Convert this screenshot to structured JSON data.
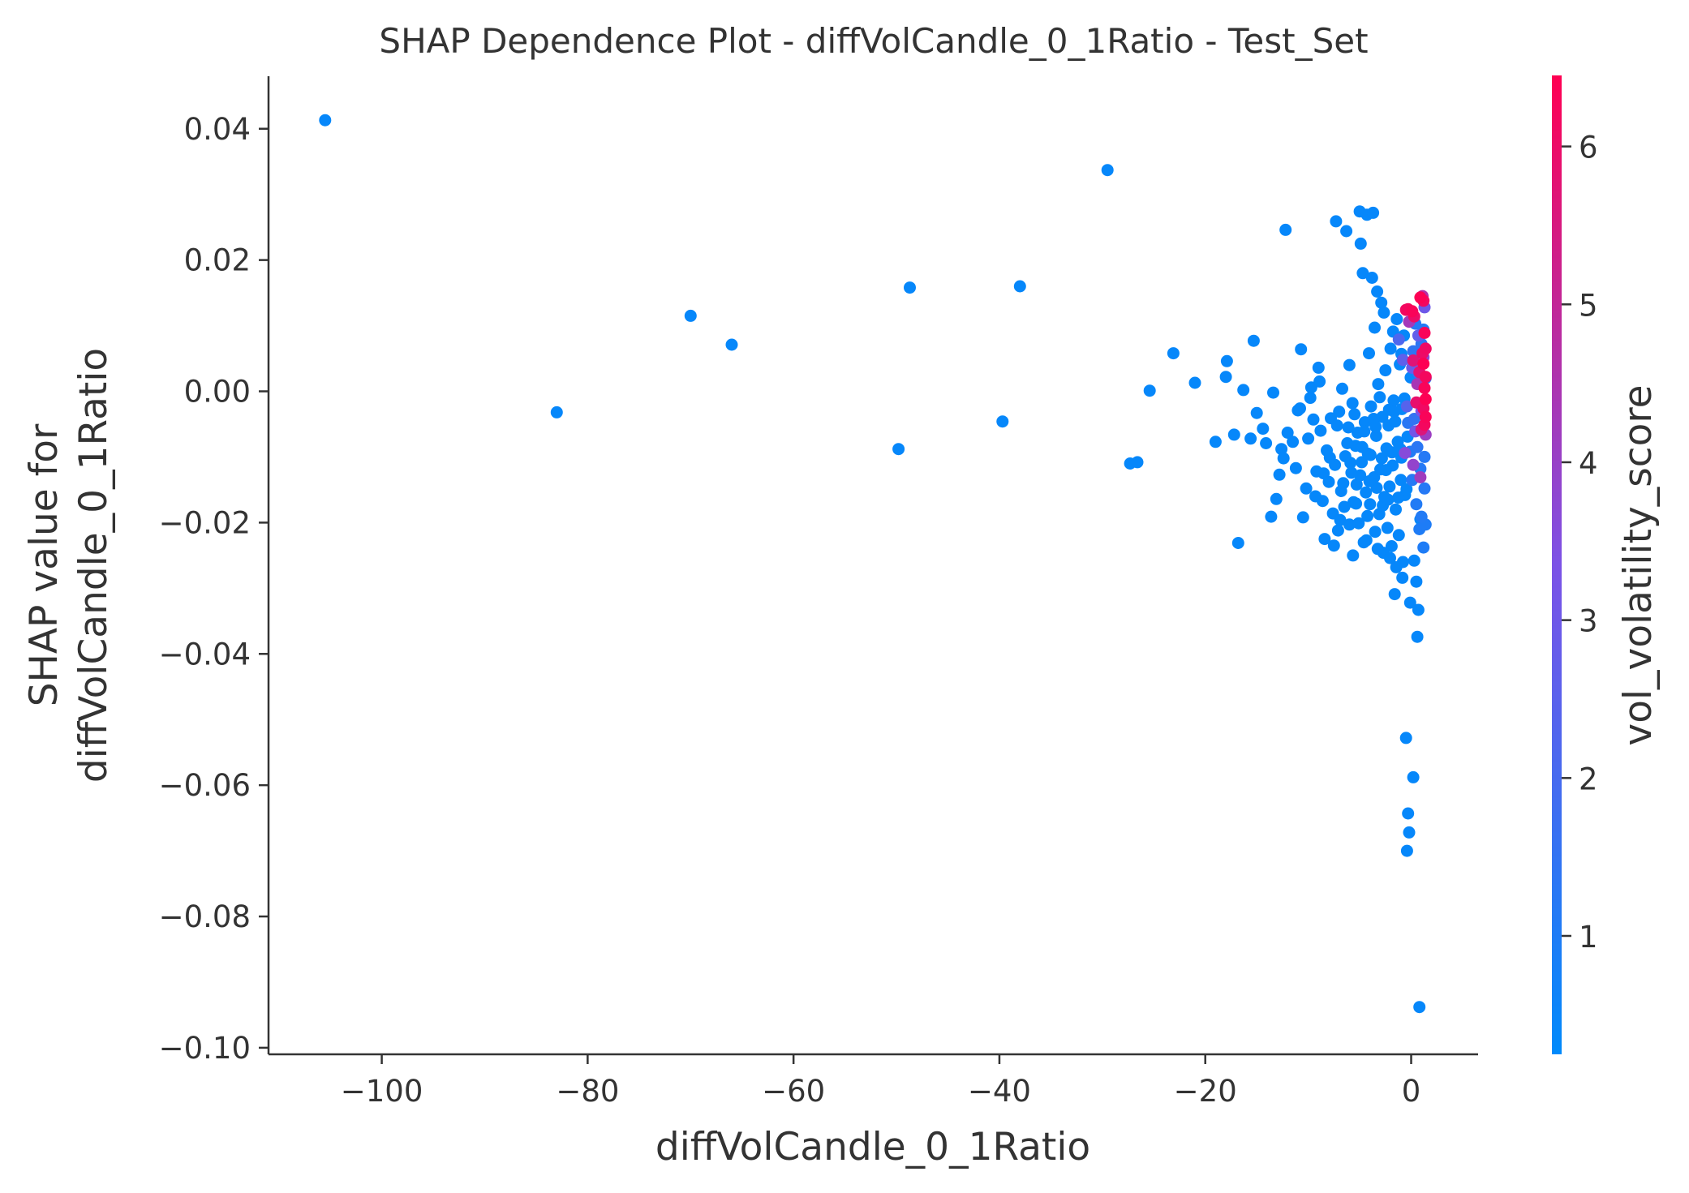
{
  "chart_data": {
    "type": "scatter",
    "title": "SHAP Dependence Plot - diffVolCandle_0_1Ratio - Test_Set",
    "xlabel": "diffVolCandle_0_1Ratio",
    "ylabel_lines": [
      "SHAP value for",
      "diffVolCandle_0_1Ratio"
    ],
    "colorbar_label": "vol_volatility_score",
    "xlim": [
      -111,
      6.5
    ],
    "ylim": [
      -0.101,
      0.048
    ],
    "x_ticks": [
      -100,
      -80,
      -60,
      -40,
      -20,
      0
    ],
    "x_tick_labels": [
      "−100",
      "−80",
      "−60",
      "−40",
      "−20",
      "0"
    ],
    "y_ticks": [
      0.04,
      0.02,
      0.0,
      -0.02,
      -0.04,
      -0.06,
      -0.08,
      -0.1
    ],
    "y_tick_labels": [
      "0.04",
      "0.02",
      "0.00",
      "−0.02",
      "−0.04",
      "−0.06",
      "−0.08",
      "−0.10"
    ],
    "colorbar_range": [
      0.25,
      6.45
    ],
    "colorbar_ticks": [
      1,
      2,
      3,
      4,
      5,
      6
    ],
    "colorbar_tick_labels": [
      "1",
      "2",
      "3",
      "4",
      "5",
      "6"
    ],
    "colors": {
      "low": "#008afb",
      "mid": "#7c52e6",
      "high": "#ff0052",
      "axis": "#333333"
    },
    "grid": false,
    "points": [
      [
        -105.5,
        0.0413,
        0.4
      ],
      [
        -29.5,
        0.0337,
        0.4
      ],
      [
        -83,
        -0.0032,
        0.4
      ],
      [
        -70,
        0.0115,
        0.4
      ],
      [
        -66,
        0.0071,
        0.4
      ],
      [
        -48.7,
        0.0158,
        0.4
      ],
      [
        -38,
        0.016,
        0.4
      ],
      [
        -49.8,
        -0.0088,
        0.4
      ],
      [
        -39.7,
        -0.0046,
        0.4
      ],
      [
        -27.3,
        -0.011,
        0.4
      ],
      [
        -26.6,
        -0.0108,
        0.4
      ],
      [
        -25.4,
        0.0001,
        0.4
      ],
      [
        -23.1,
        0.0058,
        0.4
      ],
      [
        -21,
        0.0013,
        0.4
      ],
      [
        -19,
        -0.0077,
        0.4
      ],
      [
        -17.9,
        0.0046,
        0.4
      ],
      [
        -18,
        0.0022,
        0.4
      ],
      [
        -17.2,
        -0.0066,
        0.4
      ],
      [
        -16.8,
        -0.0231,
        0.4
      ],
      [
        -16.3,
        0.0002,
        0.4
      ],
      [
        -15.6,
        -0.0072,
        0.4
      ],
      [
        -15.3,
        0.0077,
        0.4
      ],
      [
        -15,
        -0.0033,
        0.4
      ],
      [
        -14.4,
        -0.0057,
        0.4
      ],
      [
        -14.1,
        -0.0079,
        0.4
      ],
      [
        -13.6,
        -0.0191,
        0.4
      ],
      [
        -13.4,
        -0.0002,
        0.4
      ],
      [
        -13.1,
        -0.0164,
        0.4
      ],
      [
        -12.8,
        -0.0127,
        0.4
      ],
      [
        -12.6,
        -0.0088,
        0.4
      ],
      [
        -12.4,
        -0.0102,
        0.4
      ],
      [
        -12.2,
        0.0246,
        0.4
      ],
      [
        -11.5,
        -0.0077,
        0.4
      ],
      [
        -11,
        -0.0029,
        0.4
      ],
      [
        -10.7,
        0.0064,
        0.4
      ],
      [
        -10.5,
        -0.0192,
        0.4
      ],
      [
        -10.2,
        -0.0148,
        0.4
      ],
      [
        -10,
        -0.0072,
        0.4
      ],
      [
        -9.8,
        -0.001,
        0.4
      ],
      [
        -9.5,
        -0.0043,
        0.4
      ],
      [
        -9.2,
        -0.0122,
        0.4
      ],
      [
        -9,
        0.0036,
        0.4
      ],
      [
        -8.8,
        -0.006,
        0.4
      ],
      [
        -8.6,
        -0.0167,
        0.4
      ],
      [
        -8.4,
        -0.0225,
        0.4
      ],
      [
        -8.2,
        -0.009,
        0.4
      ],
      [
        -8,
        -0.0138,
        0.4
      ],
      [
        -7.8,
        -0.0041,
        0.4
      ],
      [
        -7.6,
        -0.0186,
        0.4
      ],
      [
        -7.4,
        -0.0112,
        0.4
      ],
      [
        -7.3,
        0.0259,
        0.4
      ],
      [
        -7.1,
        -0.0212,
        0.4
      ],
      [
        -7,
        -0.0031,
        0.4
      ],
      [
        -6.8,
        -0.0152,
        0.4
      ],
      [
        -6.7,
        0.0004,
        0.4
      ],
      [
        -6.5,
        -0.0176,
        0.4
      ],
      [
        -6.4,
        -0.0099,
        0.4
      ],
      [
        -6.3,
        0.0244,
        0.4
      ],
      [
        -6.1,
        -0.0055,
        0.4
      ],
      [
        -6,
        -0.0203,
        0.4
      ],
      [
        -5.8,
        -0.0124,
        0.4
      ],
      [
        -5.7,
        -0.0018,
        0.4
      ],
      [
        -5.6,
        -0.0169,
        0.4
      ],
      [
        -5.4,
        -0.0083,
        0.4
      ],
      [
        -5.3,
        -0.0142,
        0.4
      ],
      [
        -5.2,
        -0.0063,
        0.4
      ],
      [
        -5.1,
        -0.0201,
        0.4
      ],
      [
        -5,
        0.0274,
        0.4
      ],
      [
        -4.9,
        0.0225,
        0.4
      ],
      [
        -4.8,
        -0.0108,
        0.4
      ],
      [
        -4.7,
        0.018,
        0.4
      ],
      [
        -4.6,
        -0.023,
        0.4
      ],
      [
        -4.5,
        -0.0047,
        0.4
      ],
      [
        -4.4,
        -0.0154,
        0.4
      ],
      [
        -4.3,
        0.0269,
        0.4
      ],
      [
        -4.2,
        -0.0095,
        0.4
      ],
      [
        -4.1,
        0.0058,
        0.4
      ],
      [
        -4,
        -0.0172,
        0.4
      ],
      [
        -3.9,
        -0.0023,
        0.4
      ],
      [
        -3.8,
        0.0173,
        0.4
      ],
      [
        -3.7,
        0.0272,
        0.4
      ],
      [
        -3.6,
        -0.0131,
        0.4
      ],
      [
        -3.5,
        -0.0214,
        0.4
      ],
      [
        -3.4,
        -0.0068,
        0.4
      ],
      [
        -3.3,
        0.0152,
        0.4
      ],
      [
        -3.2,
        0.0011,
        0.4
      ],
      [
        -3.1,
        -0.0187,
        0.4
      ],
      [
        -3,
        -0.0119,
        0.4
      ],
      [
        -2.9,
        0.0135,
        0.4
      ],
      [
        -2.8,
        -0.0039,
        0.4
      ],
      [
        -2.7,
        -0.0246,
        0.4
      ],
      [
        -2.6,
        -0.0161,
        0.4
      ],
      [
        -2.5,
        0.0032,
        0.4
      ],
      [
        -2.4,
        -0.0087,
        0.4
      ],
      [
        -2.3,
        -0.0208,
        0.4
      ],
      [
        -2.2,
        -0.0052,
        0.4
      ],
      [
        -2.1,
        -0.0145,
        0.4
      ],
      [
        -2,
        0.0065,
        0.4
      ],
      [
        -1.9,
        -0.0236,
        0.4
      ],
      [
        -1.8,
        -0.0113,
        0.4
      ],
      [
        -1.7,
        -0.0014,
        0.4
      ],
      [
        -1.6,
        -0.0309,
        0.4
      ],
      [
        -1.5,
        -0.018,
        0.4
      ],
      [
        -1.4,
        0.011,
        0.4
      ],
      [
        -1.3,
        -0.0077,
        0.4
      ],
      [
        -1.2,
        -0.0219,
        0.4
      ],
      [
        -1.1,
        0.0041,
        0.4
      ],
      [
        -1,
        -0.0135,
        0.4
      ],
      [
        -0.9,
        -0.0027,
        0.4
      ],
      [
        -0.8,
        -0.026,
        0.4
      ],
      [
        -0.7,
        0.0085,
        0.4
      ],
      [
        -0.6,
        -0.0158,
        0.4
      ],
      [
        -0.5,
        -0.0528,
        0.4
      ],
      [
        -0.4,
        -0.07,
        0.4
      ],
      [
        -0.3,
        -0.0643,
        0.4
      ],
      [
        -0.2,
        -0.0672,
        0.4
      ],
      [
        -0.1,
        -0.0322,
        0.4
      ],
      [
        0.2,
        -0.0588,
        0.4
      ],
      [
        0.3,
        -0.0258,
        0.4
      ],
      [
        0.5,
        -0.029,
        0.4
      ],
      [
        0.6,
        -0.0374,
        0.4
      ],
      [
        0.7,
        -0.0333,
        0.4
      ],
      [
        0.8,
        -0.0938,
        0.4
      ],
      [
        0.9,
        -0.0195,
        0.4
      ],
      [
        -6.2,
        -0.0079,
        0.4
      ],
      [
        -5.9,
        -0.0109,
        0.4
      ],
      [
        -5.5,
        -0.0035,
        0.4
      ],
      [
        -4.95,
        -0.0128,
        0.4
      ],
      [
        -4.55,
        -0.0061,
        0.4
      ],
      [
        -4.25,
        -0.019,
        0.4
      ],
      [
        -3.95,
        -0.0097,
        0.4
      ],
      [
        -3.65,
        -0.0042,
        0.4
      ],
      [
        -3.35,
        -0.0147,
        0.4
      ],
      [
        -3.05,
        -0.0009,
        0.4
      ],
      [
        -2.75,
        -0.0174,
        0.4
      ],
      [
        -2.45,
        -0.012,
        0.4
      ],
      [
        -2.15,
        -0.0028,
        0.4
      ],
      [
        -1.85,
        -0.0093,
        0.4
      ],
      [
        -1.55,
        -0.0046,
        0.4
      ],
      [
        -1.25,
        -0.0162,
        0.4
      ],
      [
        -0.95,
        -0.0101,
        0.4
      ],
      [
        -0.65,
        -0.0011,
        0.4
      ],
      [
        -0.35,
        -0.0069,
        0.4
      ],
      [
        -0.05,
        0.0021,
        0.4
      ],
      [
        -7.9,
        -0.0101,
        0.4
      ],
      [
        -7.2,
        -0.0052,
        0.4
      ],
      [
        -6.6,
        -0.014,
        0.4
      ],
      [
        -5.35,
        -0.0171,
        0.4
      ],
      [
        -4.75,
        -0.0085,
        0.4
      ],
      [
        -4.05,
        -0.0137,
        0.4
      ],
      [
        -3.45,
        -0.0054,
        0.4
      ],
      [
        -2.85,
        -0.0102,
        0.4
      ],
      [
        -2.25,
        -0.0165,
        0.4
      ],
      [
        -1.65,
        -0.0031,
        0.4
      ],
      [
        -1.05,
        -0.0088,
        0.4
      ],
      [
        -0.45,
        -0.0149,
        0.4
      ],
      [
        -0.3,
        -0.0048,
        1.3
      ],
      [
        -0.1,
        -0.0092,
        1.1
      ],
      [
        0.1,
        -0.0135,
        1.2
      ],
      [
        0.2,
        0.0061,
        1.4
      ],
      [
        0.3,
        -0.0042,
        1.5
      ],
      [
        0.4,
        0.0103,
        1.2
      ],
      [
        0.5,
        -0.0172,
        1.1
      ],
      [
        0.6,
        -0.0085,
        1.3
      ],
      [
        0.7,
        0.0028,
        1.6
      ],
      [
        0.8,
        -0.021,
        1.0
      ],
      [
        0.9,
        -0.0118,
        1.2
      ],
      [
        1.0,
        0.0072,
        1.4
      ],
      [
        1.1,
        -0.006,
        1.3
      ],
      [
        1.2,
        0.0094,
        1.1
      ],
      [
        1.3,
        -0.0148,
        1.2
      ],
      [
        1.4,
        -0.0203,
        1.0
      ],
      [
        1.2,
        -0.0238,
        1.0
      ],
      [
        1.0,
        -0.0191,
        1.1
      ],
      [
        1.3,
        -0.01,
        1.2
      ],
      [
        1.4,
        0.002,
        1.3
      ],
      [
        -1.2,
        0.0079,
        2.2
      ],
      [
        -0.8,
        0.0048,
        2.6
      ],
      [
        -0.4,
        -0.0023,
        2.4
      ],
      [
        0.1,
        0.0036,
        2.9
      ],
      [
        0.4,
        -0.0061,
        3.1
      ],
      [
        0.7,
        0.0085,
        2.7
      ],
      [
        1.0,
        -0.003,
        3.4
      ],
      [
        1.3,
        0.0128,
        3.0
      ],
      [
        -0.6,
        -0.0094,
        3.6
      ],
      [
        0.2,
        -0.0112,
        3.9
      ],
      [
        0.9,
        -0.0131,
        4.2
      ],
      [
        1.2,
        0.0052,
        3.8
      ],
      [
        1.4,
        -0.0066,
        4.1
      ],
      [
        0.6,
        0.0011,
        4.4
      ],
      [
        1.1,
        0.0145,
        4.6
      ],
      [
        -0.2,
        0.0106,
        4.3
      ],
      [
        -0.3,
        0.0125,
        6.2
      ],
      [
        0.1,
        0.0122,
        6.3
      ],
      [
        -0.5,
        0.0124,
        6.1
      ],
      [
        0.3,
        0.0114,
        6.0
      ],
      [
        0.9,
        0.0143,
        6.4
      ],
      [
        1.2,
        0.0138,
        6.2
      ],
      [
        1.3,
        0.0089,
        6.3
      ],
      [
        1.4,
        0.0065,
        6.1
      ],
      [
        1.2,
        0.0042,
        6.4
      ],
      [
        1.4,
        0.0022,
        6.2
      ],
      [
        1.3,
        0.0005,
        6.3
      ],
      [
        1.4,
        -0.0012,
        6.4
      ],
      [
        1.2,
        -0.0026,
        6.1
      ],
      [
        1.4,
        -0.0039,
        6.3
      ],
      [
        1.3,
        -0.0051,
        6.2
      ],
      [
        1.1,
        0.0058,
        6.0
      ],
      [
        0.8,
        0.0029,
        5.8
      ],
      [
        0.5,
        -0.0017,
        5.9
      ],
      [
        0.2,
        0.0047,
        5.7
      ],
      [
        1.0,
        -0.0058,
        5.6
      ],
      [
        -8.5,
        -0.0125,
        0.4
      ],
      [
        -9.3,
        -0.016,
        0.4
      ],
      [
        -11.2,
        -0.0117,
        0.4
      ],
      [
        -12.0,
        -0.0063,
        0.4
      ],
      [
        -10.8,
        -0.0026,
        0.4
      ],
      [
        -9.7,
        0.0006,
        0.4
      ],
      [
        -7.5,
        -0.0235,
        0.4
      ],
      [
        -6.9,
        -0.0196,
        0.4
      ],
      [
        -5.65,
        -0.025,
        0.4
      ],
      [
        -4.35,
        -0.0227,
        0.4
      ],
      [
        -3.25,
        -0.024,
        0.4
      ],
      [
        -2.05,
        -0.0254,
        0.4
      ],
      [
        -1.45,
        -0.0268,
        0.4
      ],
      [
        -0.85,
        -0.0284,
        0.4
      ],
      [
        -8.9,
        0.0015,
        0.4
      ],
      [
        -6.0,
        0.004,
        0.4
      ],
      [
        -3.55,
        0.0097,
        0.4
      ],
      [
        -2.65,
        0.012,
        0.4
      ],
      [
        -1.75,
        0.0091,
        0.4
      ],
      [
        -0.95,
        0.0057,
        0.4
      ]
    ]
  }
}
